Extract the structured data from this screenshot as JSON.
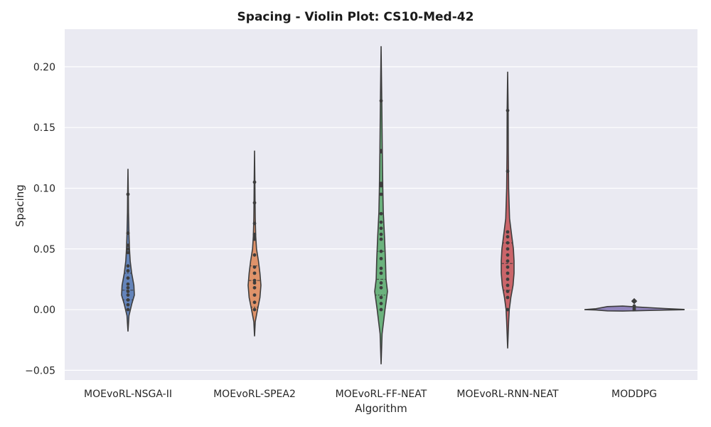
{
  "chart_data": {
    "type": "violin",
    "title": "Spacing - Violin Plot: CS10-Med-42",
    "xlabel": "Algorithm",
    "ylabel": "Spacing",
    "ylim": [
      -0.058,
      0.231
    ],
    "yticks": [
      -0.05,
      0.0,
      0.05,
      0.1,
      0.15,
      0.2
    ],
    "ytick_labels": [
      "−0.05",
      "0.00",
      "0.05",
      "0.10",
      "0.15",
      "0.20"
    ],
    "grid": true,
    "background": "#eaeaf2",
    "categories": [
      "MOEvoRL-NSGA-II",
      "MOEvoRL-SPEA2",
      "MOEvoRL-FF-NEAT",
      "MOEvoRL-RNN-NEAT",
      "MODDPG"
    ],
    "series": [
      {
        "color": "#4c72b0",
        "profile": [
          [
            -0.018,
            0.0
          ],
          [
            -0.005,
            0.4
          ],
          [
            0.005,
            1.6
          ],
          [
            0.012,
            2.6
          ],
          [
            0.02,
            2.4
          ],
          [
            0.03,
            1.5
          ],
          [
            0.04,
            0.9
          ],
          [
            0.05,
            0.6
          ],
          [
            0.062,
            0.4
          ],
          [
            0.08,
            0.2
          ],
          [
            0.095,
            0.15
          ],
          [
            0.116,
            0.0
          ]
        ],
        "quartiles": [
          0.008,
          0.016,
          0.03
        ],
        "points": [
          0.0,
          0.004,
          0.008,
          0.012,
          0.015,
          0.018,
          0.021,
          0.026,
          0.032,
          0.036,
          0.047,
          0.05,
          0.053,
          0.063,
          0.095
        ]
      },
      {
        "color": "#dd8452",
        "profile": [
          [
            -0.022,
            0.0
          ],
          [
            -0.01,
            0.3
          ],
          [
            0.0,
            1.2
          ],
          [
            0.01,
            2.2
          ],
          [
            0.02,
            2.6
          ],
          [
            0.03,
            2.2
          ],
          [
            0.04,
            1.6
          ],
          [
            0.05,
            0.8
          ],
          [
            0.06,
            0.5
          ],
          [
            0.075,
            0.3
          ],
          [
            0.09,
            0.2
          ],
          [
            0.105,
            0.15
          ],
          [
            0.131,
            0.0
          ]
        ],
        "quartiles": [
          0.002,
          0.024,
          0.036
        ],
        "points": [
          0.0,
          0.006,
          0.012,
          0.018,
          0.022,
          0.024,
          0.03,
          0.035,
          0.045,
          0.058,
          0.06,
          0.062,
          0.071,
          0.088,
          0.105
        ]
      },
      {
        "color": "#55a868",
        "profile": [
          [
            -0.045,
            0.0
          ],
          [
            -0.02,
            0.2
          ],
          [
            0.0,
            0.8
          ],
          [
            0.015,
            1.3
          ],
          [
            0.025,
            1.0
          ],
          [
            0.04,
            0.9
          ],
          [
            0.06,
            0.7
          ],
          [
            0.08,
            0.45
          ],
          [
            0.1,
            0.35
          ],
          [
            0.13,
            0.25
          ],
          [
            0.17,
            0.15
          ],
          [
            0.217,
            0.0
          ]
        ],
        "quartiles": [
          0.012,
          0.025,
          0.048
        ],
        "points": [
          0.0,
          0.005,
          0.01,
          0.018,
          0.022,
          0.03,
          0.034,
          0.042,
          0.048,
          0.058,
          0.062,
          0.067,
          0.072,
          0.079,
          0.095,
          0.102,
          0.104,
          0.13,
          0.131,
          0.172
        ]
      },
      {
        "color": "#c44e52",
        "profile": [
          [
            -0.032,
            0.0
          ],
          [
            -0.01,
            0.3
          ],
          [
            0.0,
            0.5
          ],
          [
            0.01,
            1.0
          ],
          [
            0.02,
            1.7
          ],
          [
            0.03,
            2.0
          ],
          [
            0.04,
            2.0
          ],
          [
            0.05,
            1.8
          ],
          [
            0.06,
            1.3
          ],
          [
            0.075,
            0.6
          ],
          [
            0.1,
            0.3
          ],
          [
            0.13,
            0.2
          ],
          [
            0.165,
            0.15
          ],
          [
            0.196,
            0.0
          ]
        ],
        "quartiles": [
          0.016,
          0.038,
          0.055
        ],
        "points": [
          0.0,
          0.01,
          0.015,
          0.02,
          0.025,
          0.03,
          0.035,
          0.04,
          0.045,
          0.05,
          0.055,
          0.06,
          0.064,
          0.114,
          0.164
        ]
      },
      {
        "color": "#8172b3",
        "flat": true,
        "profile": [
          [
            -0.0012,
            0.0
          ],
          [
            -0.0006,
            0.25
          ],
          [
            0.0,
            0.85
          ],
          [
            0.0008,
            1.0
          ],
          [
            0.002,
            0.6
          ],
          [
            0.003,
            0.3
          ],
          [
            0.004,
            0.05
          ]
        ],
        "quartiles": [
          0.0,
          0.0005,
          0.0015
        ],
        "points": [
          0.0,
          0.001,
          0.003,
          0.007
        ]
      }
    ]
  }
}
